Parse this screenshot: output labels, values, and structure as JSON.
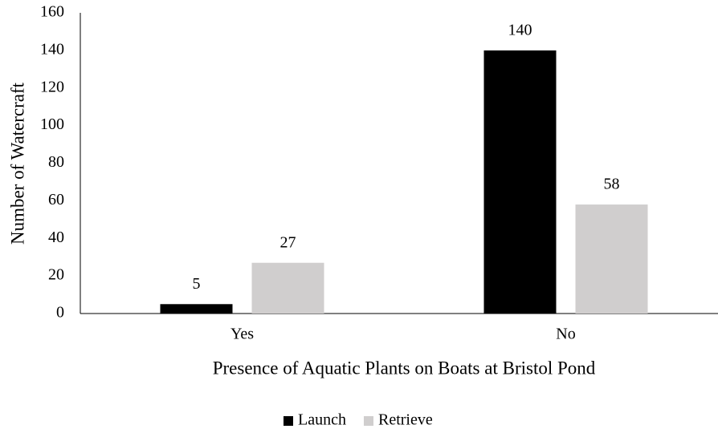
{
  "chart_data": {
    "type": "bar",
    "xlabel": "Presence of Aquatic Plants on Boats at Bristol Pond",
    "ylabel": "Number of Watercraft",
    "categories": [
      "Yes",
      "No"
    ],
    "series": [
      {
        "name": "Launch",
        "color": "#000000",
        "values": [
          5,
          140
        ]
      },
      {
        "name": "Retrieve",
        "color": "#d0cece",
        "values": [
          27,
          58
        ]
      }
    ],
    "ylim": [
      0,
      160
    ],
    "yticks": [
      0,
      20,
      40,
      60,
      80,
      100,
      120,
      140,
      160
    ],
    "grid": false,
    "legend": "bottom",
    "data_labels": true
  }
}
